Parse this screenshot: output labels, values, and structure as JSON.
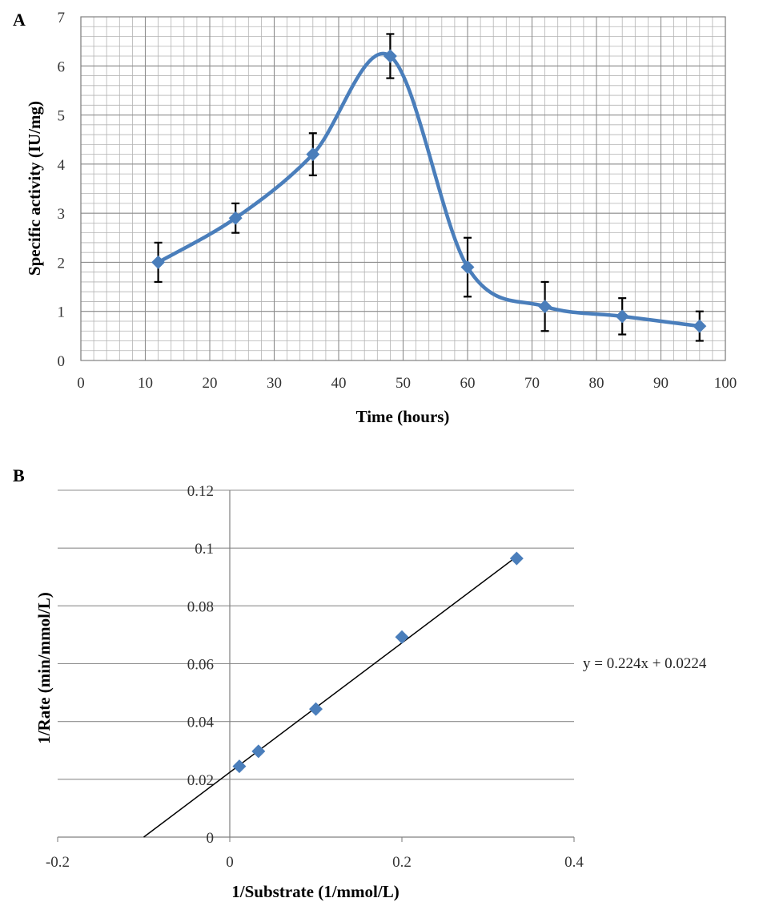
{
  "chart_data": [
    {
      "panel": "A",
      "type": "line",
      "xlabel": "Time (hours)",
      "ylabel": "Specific activity (IU/mg)",
      "xlim": [
        0,
        100
      ],
      "ylim": [
        0,
        7
      ],
      "x_ticks": [
        0,
        10,
        20,
        30,
        40,
        50,
        60,
        70,
        80,
        90,
        100
      ],
      "y_ticks": [
        0,
        1,
        2,
        3,
        4,
        5,
        6,
        7
      ],
      "grid": "major and minor",
      "series_color": "#4a7ebb",
      "x": [
        12,
        24,
        36,
        48,
        60,
        72,
        84,
        96
      ],
      "y": [
        2.0,
        2.9,
        4.2,
        6.2,
        1.9,
        1.1,
        0.9,
        0.7
      ],
      "error": [
        0.4,
        0.3,
        0.43,
        0.45,
        0.6,
        0.5,
        0.37,
        0.3
      ]
    },
    {
      "panel": "B",
      "type": "scatter",
      "xlabel": "1/Substrate (1/mmol/L)",
      "ylabel": "1/Rate (min/mmol/L)",
      "xlim": [
        -0.2,
        0.4
      ],
      "ylim": [
        0,
        0.12
      ],
      "x_ticks": [
        -0.2,
        0,
        0.2,
        0.4
      ],
      "x_tick_labels": [
        "-0.2",
        "0",
        "0.2",
        "0.4"
      ],
      "y_ticks": [
        0,
        0.02,
        0.04,
        0.06,
        0.08,
        0.1,
        0.12
      ],
      "y_tick_labels": [
        "0",
        "0.02",
        "0.04",
        "0.06",
        "0.08",
        "0.1",
        "0.12"
      ],
      "grid": "horizontal major",
      "series_color": "#4a7ebb",
      "x": [
        0.0111,
        0.0333,
        0.1,
        0.2,
        0.3333
      ],
      "y": [
        0.0245,
        0.0297,
        0.0443,
        0.0692,
        0.0964
      ],
      "trendline": {
        "slope": 0.224,
        "intercept": 0.0224,
        "x_range": [
          -0.1,
          0.3333
        ],
        "equation": "y = 0.224x + 0.0224"
      }
    }
  ]
}
